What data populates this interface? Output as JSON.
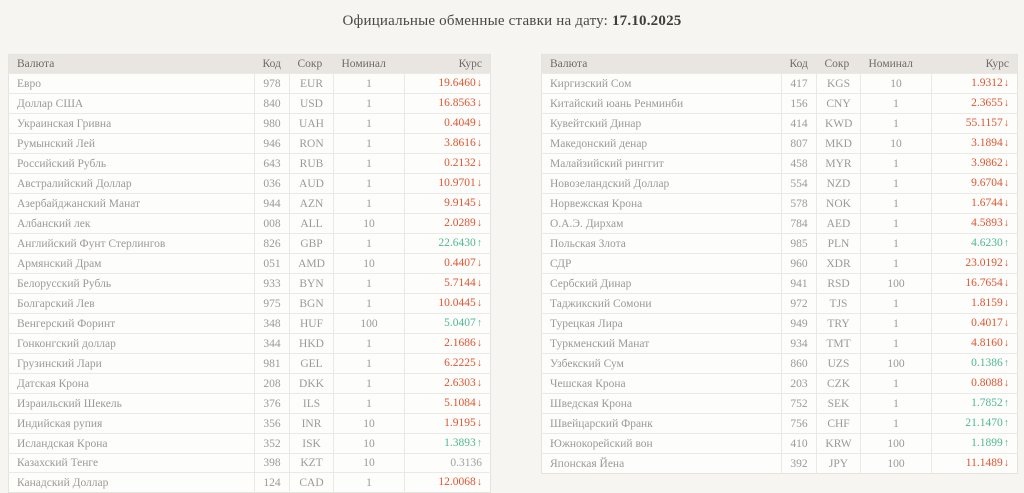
{
  "title": {
    "prefix": "Официальные обменные ставки на дату: ",
    "date": "17.10.2025"
  },
  "columns": [
    "Валюта",
    "Код",
    "Сокр",
    "Номинал",
    "Курс"
  ],
  "arrows": {
    "down": "↓",
    "up": "↑"
  },
  "colors": {
    "rate_down": "#e0552f",
    "rate_up": "#4fb793",
    "rate_flat": "#a3a19c",
    "page_background": "#f7f5f1",
    "header_background": "#e9e6e1",
    "text_gray": "#9c9a95"
  },
  "tables": {
    "left": [
      {
        "name": "Евро",
        "code": "978",
        "abbr": "EUR",
        "nominal": "1",
        "rate": "19.6460",
        "trend": "down"
      },
      {
        "name": "Доллар США",
        "code": "840",
        "abbr": "USD",
        "nominal": "1",
        "rate": "16.8563",
        "trend": "down"
      },
      {
        "name": "Украинская Гривна",
        "code": "980",
        "abbr": "UAH",
        "nominal": "1",
        "rate": "0.4049",
        "trend": "down"
      },
      {
        "name": "Румынский Лей",
        "code": "946",
        "abbr": "RON",
        "nominal": "1",
        "rate": "3.8616",
        "trend": "down"
      },
      {
        "name": "Российский Рубль",
        "code": "643",
        "abbr": "RUB",
        "nominal": "1",
        "rate": "0.2132",
        "trend": "down"
      },
      {
        "name": "Австралийский Доллар",
        "code": "036",
        "abbr": "AUD",
        "nominal": "1",
        "rate": "10.9701",
        "trend": "down"
      },
      {
        "name": "Азербайджанский Манат",
        "code": "944",
        "abbr": "AZN",
        "nominal": "1",
        "rate": "9.9145",
        "trend": "down"
      },
      {
        "name": "Албанский лек",
        "code": "008",
        "abbr": "ALL",
        "nominal": "10",
        "rate": "2.0289",
        "trend": "down"
      },
      {
        "name": "Английский Фунт Стерлингов",
        "code": "826",
        "abbr": "GBP",
        "nominal": "1",
        "rate": "22.6430",
        "trend": "up"
      },
      {
        "name": "Армянский Драм",
        "code": "051",
        "abbr": "AMD",
        "nominal": "10",
        "rate": "0.4407",
        "trend": "down"
      },
      {
        "name": "Белорусский Рубль",
        "code": "933",
        "abbr": "BYN",
        "nominal": "1",
        "rate": "5.7144",
        "trend": "down"
      },
      {
        "name": "Болгарский Лев",
        "code": "975",
        "abbr": "BGN",
        "nominal": "1",
        "rate": "10.0445",
        "trend": "down"
      },
      {
        "name": "Венгерский Форинт",
        "code": "348",
        "abbr": "HUF",
        "nominal": "100",
        "rate": "5.0407",
        "trend": "up"
      },
      {
        "name": "Гонконгский доллар",
        "code": "344",
        "abbr": "HKD",
        "nominal": "1",
        "rate": "2.1686",
        "trend": "down"
      },
      {
        "name": "Грузинский Лари",
        "code": "981",
        "abbr": "GEL",
        "nominal": "1",
        "rate": "6.2225",
        "trend": "down"
      },
      {
        "name": "Датская Крона",
        "code": "208",
        "abbr": "DKK",
        "nominal": "1",
        "rate": "2.6303",
        "trend": "down"
      },
      {
        "name": "Израильский Шекель",
        "code": "376",
        "abbr": "ILS",
        "nominal": "1",
        "rate": "5.1084",
        "trend": "down"
      },
      {
        "name": "Индийская рупия",
        "code": "356",
        "abbr": "INR",
        "nominal": "10",
        "rate": "1.9195",
        "trend": "down"
      },
      {
        "name": "Исландская Крона",
        "code": "352",
        "abbr": "ISK",
        "nominal": "10",
        "rate": "1.3893",
        "trend": "up"
      },
      {
        "name": "Казахский Тенге",
        "code": "398",
        "abbr": "KZT",
        "nominal": "10",
        "rate": "0.3136",
        "trend": "flat"
      },
      {
        "name": "Канадский Доллар",
        "code": "124",
        "abbr": "CAD",
        "nominal": "1",
        "rate": "12.0068",
        "trend": "down"
      }
    ],
    "right": [
      {
        "name": "Киргизский Сом",
        "code": "417",
        "abbr": "KGS",
        "nominal": "10",
        "rate": "1.9312",
        "trend": "down"
      },
      {
        "name": "Китайский юань Ренминби",
        "code": "156",
        "abbr": "CNY",
        "nominal": "1",
        "rate": "2.3655",
        "trend": "down"
      },
      {
        "name": "Кувейтский Динар",
        "code": "414",
        "abbr": "KWD",
        "nominal": "1",
        "rate": "55.1157",
        "trend": "down"
      },
      {
        "name": "Македонский денар",
        "code": "807",
        "abbr": "MKD",
        "nominal": "10",
        "rate": "3.1894",
        "trend": "down"
      },
      {
        "name": "Малайзийский ринггит",
        "code": "458",
        "abbr": "MYR",
        "nominal": "1",
        "rate": "3.9862",
        "trend": "down"
      },
      {
        "name": "Новозеландский Доллар",
        "code": "554",
        "abbr": "NZD",
        "nominal": "1",
        "rate": "9.6704",
        "trend": "down"
      },
      {
        "name": "Норвежская Крона",
        "code": "578",
        "abbr": "NOK",
        "nominal": "1",
        "rate": "1.6744",
        "trend": "down"
      },
      {
        "name": "О.А.Э. Дирхам",
        "code": "784",
        "abbr": "AED",
        "nominal": "1",
        "rate": "4.5893",
        "trend": "down"
      },
      {
        "name": "Польская Злота",
        "code": "985",
        "abbr": "PLN",
        "nominal": "1",
        "rate": "4.6230",
        "trend": "up"
      },
      {
        "name": "СДР",
        "code": "960",
        "abbr": "XDR",
        "nominal": "1",
        "rate": "23.0192",
        "trend": "down"
      },
      {
        "name": "Сербский Динар",
        "code": "941",
        "abbr": "RSD",
        "nominal": "100",
        "rate": "16.7654",
        "trend": "down"
      },
      {
        "name": "Таджикский Сомони",
        "code": "972",
        "abbr": "TJS",
        "nominal": "1",
        "rate": "1.8159",
        "trend": "down"
      },
      {
        "name": "Турецкая Лира",
        "code": "949",
        "abbr": "TRY",
        "nominal": "1",
        "rate": "0.4017",
        "trend": "down"
      },
      {
        "name": "Туркменский Манат",
        "code": "934",
        "abbr": "TMT",
        "nominal": "1",
        "rate": "4.8160",
        "trend": "down"
      },
      {
        "name": "Узбекский Сум",
        "code": "860",
        "abbr": "UZS",
        "nominal": "100",
        "rate": "0.1386",
        "trend": "up"
      },
      {
        "name": "Чешская Крона",
        "code": "203",
        "abbr": "CZK",
        "nominal": "1",
        "rate": "0.8088",
        "trend": "down"
      },
      {
        "name": "Шведская Крона",
        "code": "752",
        "abbr": "SEK",
        "nominal": "1",
        "rate": "1.7852",
        "trend": "up"
      },
      {
        "name": "Швейцарский Франк",
        "code": "756",
        "abbr": "CHF",
        "nominal": "1",
        "rate": "21.1470",
        "trend": "up"
      },
      {
        "name": "Южнокорейский вон",
        "code": "410",
        "abbr": "KRW",
        "nominal": "100",
        "rate": "1.1899",
        "trend": "up"
      },
      {
        "name": "Японская Йена",
        "code": "392",
        "abbr": "JPY",
        "nominal": "100",
        "rate": "11.1489",
        "trend": "down"
      }
    ]
  }
}
